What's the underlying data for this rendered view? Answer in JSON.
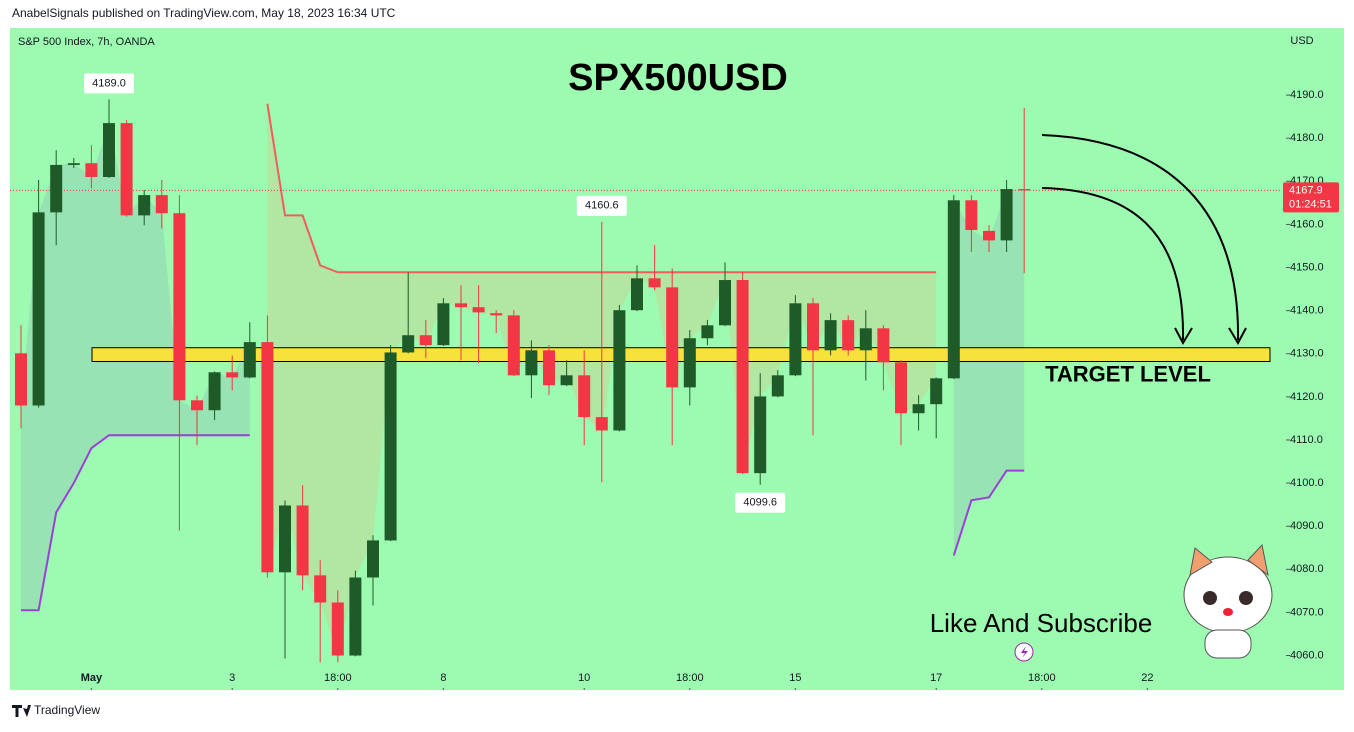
{
  "header": "AnabelSignals published on TradingView.com, May 18, 2023 16:34 UTC",
  "footer": "TradingView",
  "chart_data": {
    "type": "candlestick",
    "title": "SPX500USD",
    "subtitle": "S&P 500 Index, 7h, OANDA",
    "currency": "USD",
    "up_color": "#1e5b28",
    "down_color": "#f23645",
    "background": "#9dfbb1",
    "ylim": [
      4052.0,
      4205.1
    ],
    "yticks": [
      {
        "value": 4060,
        "label": "4060.0"
      },
      {
        "value": 4070,
        "label": "4070.0"
      },
      {
        "value": 4080,
        "label": "4080.0"
      },
      {
        "value": 4090,
        "label": "4090.0"
      },
      {
        "value": 4100,
        "label": "4100.0"
      },
      {
        "value": 4110,
        "label": "4110.0"
      },
      {
        "value": 4120,
        "label": "4120.0"
      },
      {
        "value": 4130,
        "label": "4130.0"
      },
      {
        "value": 4140,
        "label": "4140.0"
      },
      {
        "value": 4150,
        "label": "4150.0"
      },
      {
        "value": 4160,
        "label": "4160.0"
      },
      {
        "value": 4170,
        "label": "4170.0"
      },
      {
        "value": 4180,
        "label": "4180.0"
      },
      {
        "value": 4190,
        "label": "4190.0"
      }
    ],
    "xticks": [
      {
        "value": 4,
        "label": "May"
      },
      {
        "value": 12,
        "label": "3"
      },
      {
        "value": 18,
        "label": "18:00"
      },
      {
        "value": 24,
        "label": "8"
      },
      {
        "value": 32,
        "label": "10"
      },
      {
        "value": 38,
        "label": "18:00"
      },
      {
        "value": 44,
        "label": "15"
      },
      {
        "value": 52,
        "label": "17"
      },
      {
        "value": 58,
        "label": "18:00"
      },
      {
        "value": 64,
        "label": "22"
      }
    ],
    "open": [
      4130.1,
      4118.0,
      4162.8,
      4173.8,
      4174.2,
      4171.0,
      4183.5,
      4162.1,
      4166.8,
      4162.6,
      4119.2,
      4116.9,
      4125.7,
      4124.5,
      4132.7,
      4079.3,
      4094.8,
      4078.6,
      4072.3,
      4060.0,
      4078.1,
      4086.7,
      4130.3,
      4134.3,
      4132.0,
      4141.7,
      4140.8,
      4139.4,
      4138.9,
      4125.0,
      4130.8,
      4122.7,
      4125.0,
      4115.3,
      4112.2,
      4140.1,
      4147.5,
      4145.4,
      4122.2,
      4133.6,
      4136.6,
      4147.1,
      4102.3,
      4120.1,
      4125.0,
      4141.7,
      4130.8,
      4137.8,
      4130.8,
      4135.9,
      4128.0,
      4116.2,
      4118.3,
      4124.3,
      4165.6,
      4158.5,
      4156.3,
      4168.2
    ],
    "high": [
      4136.6,
      4170.3,
      4177.2,
      4175.4,
      4178.4,
      4189.0,
      4184.2,
      4168.0,
      4170.3,
      4166.8,
      4120.3,
      4125.9,
      4129.6,
      4137.3,
      4138.9,
      4096.0,
      4099.5,
      4082.1,
      4075.1,
      4079.7,
      4087.9,
      4132.0,
      4148.9,
      4137.8,
      4142.9,
      4145.9,
      4145.9,
      4140.1,
      4140.1,
      4133.1,
      4132.0,
      4128.5,
      4130.8,
      4160.6,
      4141.3,
      4150.5,
      4155.2,
      4149.8,
      4135.5,
      4137.8,
      4151.2,
      4148.9,
      4125.5,
      4126.2,
      4143.6,
      4142.9,
      4139.4,
      4138.9,
      4140.1,
      4136.6,
      4128.5,
      4120.4,
      4124.5,
      4166.8,
      4166.8,
      4159.8,
      4170.3,
      4187.0
    ],
    "low": [
      4112.7,
      4117.5,
      4155.2,
      4173.1,
      4168.4,
      4170.8,
      4161.8,
      4159.8,
      4159.1,
      4089.0,
      4108.8,
      4114.6,
      4121.5,
      4124.3,
      4078.1,
      4059.3,
      4075.1,
      4058.4,
      4058.4,
      4059.8,
      4071.6,
      4086.5,
      4130.1,
      4129.0,
      4131.8,
      4128.5,
      4127.8,
      4134.8,
      4124.8,
      4119.7,
      4120.4,
      4122.5,
      4108.8,
      4100.2,
      4112.0,
      4139.9,
      4144.7,
      4108.8,
      4118.0,
      4132.0,
      4136.4,
      4102.1,
      4099.6,
      4119.9,
      4124.8,
      4111.1,
      4129.6,
      4129.6,
      4123.8,
      4121.5,
      4108.8,
      4112.2,
      4110.4,
      4124.1,
      4153.6,
      4153.6,
      4153.6,
      4148.7
    ],
    "close": [
      4118.0,
      4162.8,
      4173.8,
      4174.2,
      4171.0,
      4183.5,
      4162.1,
      4166.8,
      4162.6,
      4119.2,
      4116.9,
      4125.7,
      4124.5,
      4132.7,
      4079.3,
      4094.8,
      4078.6,
      4072.3,
      4060.0,
      4078.1,
      4086.7,
      4130.3,
      4134.3,
      4132.0,
      4141.7,
      4140.8,
      4139.6,
      4138.9,
      4125.0,
      4130.8,
      4122.7,
      4125.0,
      4115.3,
      4112.2,
      4140.1,
      4147.5,
      4145.4,
      4122.2,
      4133.6,
      4136.6,
      4147.1,
      4102.3,
      4120.1,
      4125.0,
      4141.7,
      4130.8,
      4137.8,
      4130.8,
      4135.9,
      4128.0,
      4116.2,
      4118.3,
      4124.3,
      4165.6,
      4158.7,
      4156.3,
      4168.2,
      4167.9
    ],
    "upper_band": [
      null,
      null,
      null,
      null,
      null,
      null,
      null,
      null,
      null,
      null,
      null,
      null,
      null,
      null,
      4188.0,
      4162.1,
      4162.1,
      4150.5,
      4148.9,
      4148.9,
      4148.9,
      4148.9,
      4148.9,
      4148.9,
      4148.9,
      4148.9,
      4148.9,
      4148.9,
      4148.9,
      4148.9,
      4148.9,
      4148.9,
      4148.9,
      4148.9,
      4148.9,
      4148.9,
      4148.9,
      4148.9,
      4148.9,
      4148.9,
      4148.9,
      4148.9,
      4148.9,
      4148.9,
      4148.9,
      4148.9,
      4148.9,
      4148.9,
      4148.9,
      4148.9,
      4148.9,
      4148.9,
      4148.9,
      null,
      null,
      null,
      null,
      null
    ],
    "lower_band": [
      4070.5,
      4070.5,
      4093.2,
      4100.0,
      4108.1,
      4111.1,
      4111.1,
      4111.1,
      4111.1,
      4111.1,
      4111.1,
      4111.1,
      4111.1,
      4111.1,
      null,
      null,
      null,
      null,
      null,
      null,
      null,
      null,
      null,
      null,
      null,
      null,
      null,
      null,
      null,
      null,
      null,
      null,
      null,
      null,
      null,
      null,
      null,
      null,
      null,
      null,
      null,
      null,
      null,
      null,
      null,
      null,
      null,
      null,
      null,
      null,
      null,
      null,
      null,
      4083.2,
      4096.0,
      4096.7,
      4102.9,
      4102.9
    ],
    "upper_color": "#f25c5c",
    "lower_color": "#9c3fd6",
    "annotations": [
      {
        "index": 5,
        "value": 4189.0,
        "label": "4189.0",
        "side": "above"
      },
      {
        "index": 33,
        "value": 4160.6,
        "label": "4160.6",
        "side": "above"
      },
      {
        "index": 42,
        "value": 4099.6,
        "label": "4099.6",
        "side": "below"
      }
    ],
    "last_price": {
      "value": 4167.9,
      "label": "4167.9",
      "countdown": "01:24:51"
    },
    "target_zone": {
      "low": 4128.2,
      "high": 4131.4,
      "label": "TARGET LEVEL",
      "color": "#f7e13c"
    },
    "note": "Like And Subscribe"
  }
}
